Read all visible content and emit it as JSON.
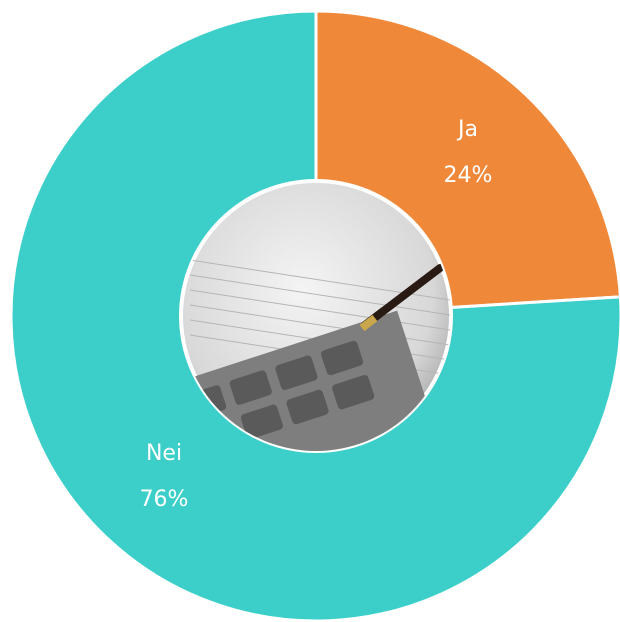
{
  "chart_data": {
    "type": "pie",
    "categories": [
      "Ja",
      "Nei"
    ],
    "values": [
      24,
      76
    ],
    "value_labels": [
      "24%",
      "76%"
    ],
    "colors": [
      "#f0883a",
      "#3ccfc9"
    ]
  }
}
